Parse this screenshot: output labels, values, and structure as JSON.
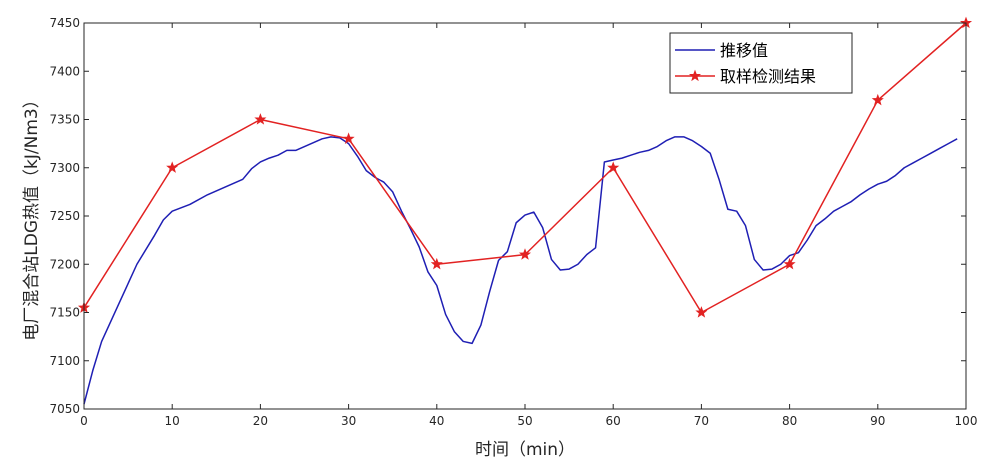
{
  "chart_data": {
    "type": "line",
    "title": "",
    "xlabel": "时间（min）",
    "ylabel": "电厂混合站LDG热值（kJ/Nm3）",
    "xlim": [
      0,
      100
    ],
    "ylim": [
      7050,
      7450
    ],
    "xticks": [
      0,
      10,
      20,
      30,
      40,
      50,
      60,
      70,
      80,
      90,
      100
    ],
    "yticks": [
      7050,
      7100,
      7150,
      7200,
      7250,
      7300,
      7350,
      7400,
      7450
    ],
    "grid": false,
    "legend_position": "top-right",
    "series": [
      {
        "name": "推移值",
        "color": "#1f1fb4",
        "marker": "none",
        "x": [
          0,
          1,
          2,
          4,
          6,
          8,
          9,
          10,
          12,
          14,
          16,
          18,
          19,
          20,
          21,
          22,
          23,
          24,
          25,
          26,
          27,
          28,
          29,
          30,
          31,
          32,
          33,
          34,
          35,
          36,
          37,
          38,
          39,
          40,
          41,
          42,
          43,
          44,
          45,
          46,
          47,
          48,
          49,
          50,
          51,
          52,
          53,
          54,
          55,
          56,
          57,
          58,
          59,
          60,
          61,
          62,
          63,
          64,
          65,
          66,
          67,
          68,
          69,
          70,
          71,
          72,
          73,
          74,
          75,
          76,
          77,
          78,
          79,
          80,
          81,
          82,
          83,
          84,
          85,
          86,
          87,
          88,
          89,
          90,
          91,
          92,
          93,
          94,
          95,
          96,
          97,
          98,
          99
        ],
        "y": [
          7055,
          7090,
          7120,
          7160,
          7200,
          7230,
          7246,
          7255,
          7262,
          7272,
          7280,
          7288,
          7299,
          7306,
          7310,
          7313,
          7318,
          7318,
          7322,
          7326,
          7330,
          7332,
          7331,
          7325,
          7312,
          7297,
          7290,
          7285,
          7275,
          7255,
          7237,
          7218,
          7192,
          7178,
          7148,
          7130,
          7120,
          7118,
          7137,
          7172,
          7204,
          7213,
          7243,
          7251,
          7254,
          7238,
          7205,
          7194,
          7195,
          7200,
          7210,
          7217,
          7306,
          7308,
          7310,
          7313,
          7316,
          7318,
          7322,
          7328,
          7332,
          7332,
          7328,
          7322,
          7315,
          7288,
          7257,
          7255,
          7240,
          7205,
          7194,
          7195,
          7200,
          7209,
          7212,
          7225,
          7240,
          7247,
          7255,
          7260,
          7265,
          7272,
          7278,
          7283,
          7286,
          7292,
          7300,
          7305,
          7310,
          7315,
          7320,
          7325,
          7330
        ]
      },
      {
        "name": "取样检测结果",
        "color": "#e22222",
        "marker": "star",
        "x": [
          0,
          10,
          20,
          30,
          40,
          50,
          60,
          70,
          80,
          90,
          100
        ],
        "y": [
          7155,
          7300,
          7350,
          7330,
          7200,
          7210,
          7300,
          7150,
          7200,
          7370,
          7450
        ]
      }
    ]
  }
}
